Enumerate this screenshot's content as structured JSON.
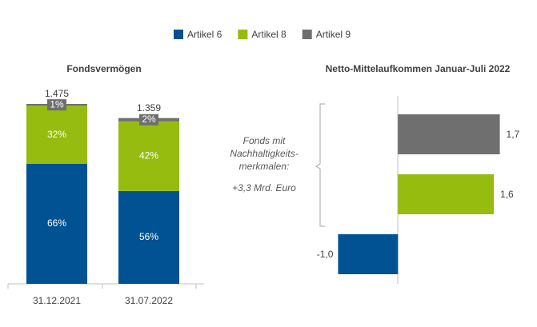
{
  "legend": [
    {
      "name": "Artikel 6",
      "color": "#005293"
    },
    {
      "name": "Artikel 8",
      "color": "#95bc0e"
    },
    {
      "name": "Artikel 9",
      "color": "#6f6f6f"
    }
  ],
  "chart_data": [
    {
      "type": "stacked_bar",
      "title": "Fondsvermögen",
      "categories": [
        "31.12.2021",
        "31.07.2022"
      ],
      "totals": [
        {
          "value": 1475,
          "label": "1.475"
        },
        {
          "value": 1359,
          "label": "1.359"
        }
      ],
      "series": [
        {
          "name": "Artikel 6",
          "color": "#005293",
          "values": [
            66,
            56
          ],
          "value_labels": [
            "66%",
            "56%"
          ]
        },
        {
          "name": "Artikel 8",
          "color": "#95bc0e",
          "values": [
            32,
            42
          ],
          "value_labels": [
            "32%",
            "42%"
          ]
        },
        {
          "name": "Artikel 9",
          "color": "#6f6f6f",
          "values": [
            1,
            2
          ],
          "value_labels": [
            "1%",
            "2%"
          ]
        }
      ]
    },
    {
      "type": "hbar",
      "title": "Netto-Mittelaufkommen Januar-Juli 2022",
      "categories": [
        null,
        null,
        null
      ],
      "values": [
        1.7,
        1.6,
        -1.0
      ],
      "value_labels": [
        "1,7",
        "1,6",
        "-1,0"
      ],
      "colors": [
        "#6f6f6f",
        "#95bc0e",
        "#005293"
      ],
      "xlim": [
        -1.5,
        2
      ],
      "annotation": [
        "Fonds mit",
        "Nachhaltigkeits-",
        "merkmalen:",
        "+3,3 Mrd. Euro"
      ]
    }
  ]
}
